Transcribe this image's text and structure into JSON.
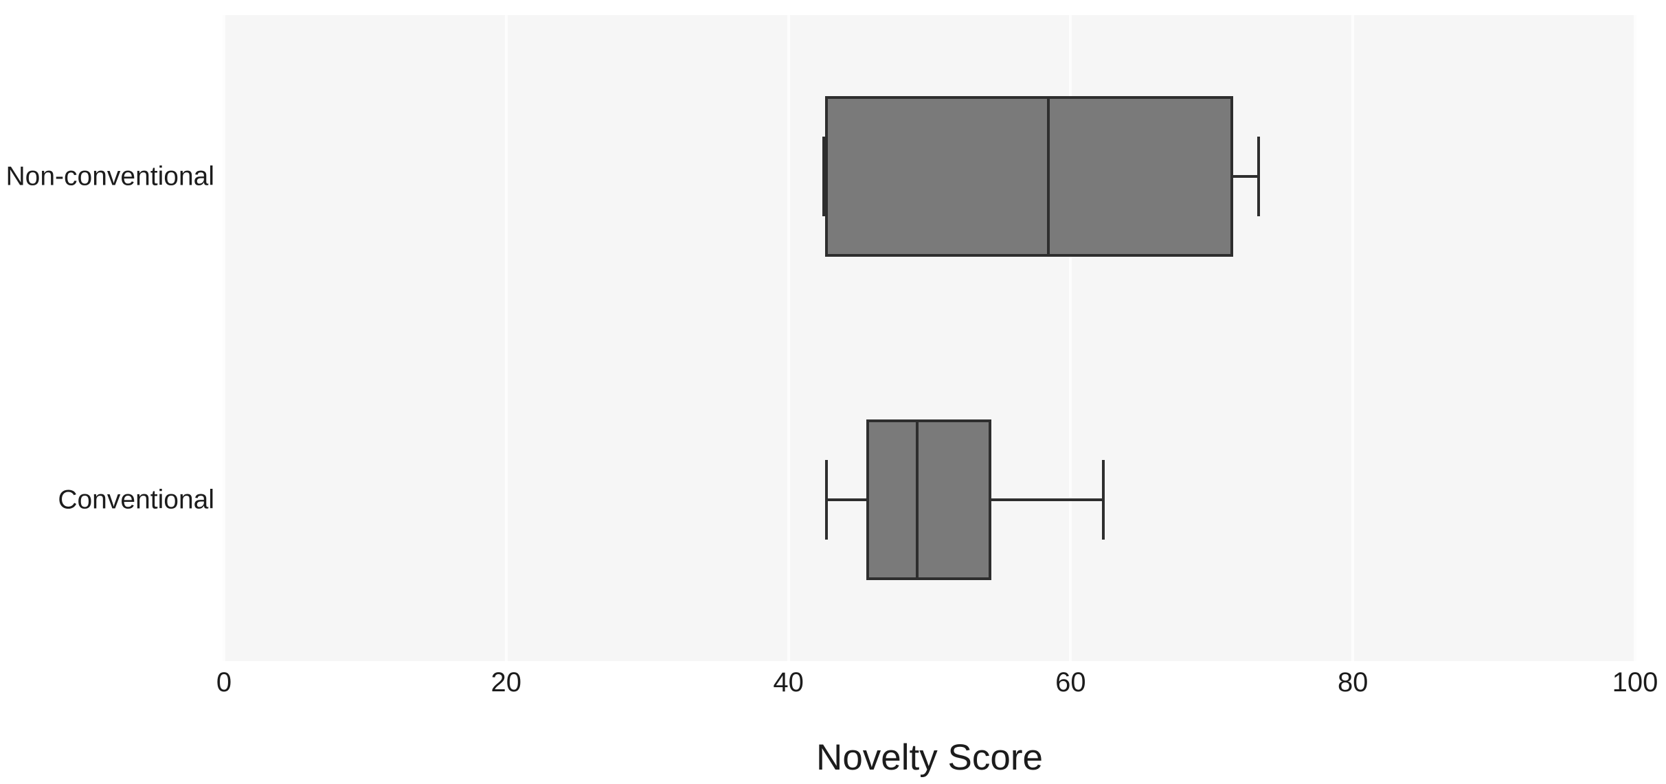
{
  "figure": {
    "background_color": "#ffffff",
    "plot_background_color": "#f6f6f6",
    "gridline_color": "#fdfdfd",
    "box_fill_color": "#7a7a7a",
    "line_color": "#2e2e2e",
    "text_color": "#1c1c1c"
  },
  "chart_data": {
    "type": "boxplot",
    "orientation": "horizontal",
    "title": "",
    "xlabel": "Novelty Score",
    "ylabel": "",
    "xlim": [
      0,
      100
    ],
    "xticks": [
      "0",
      "20",
      "40",
      "60",
      "80",
      "100"
    ],
    "xtick_values": [
      0,
      20,
      40,
      60,
      80,
      100
    ],
    "grid": "vertical-gridlines-on",
    "legend": "none",
    "categories": [
      "Non-conventional",
      "Conventional"
    ],
    "series": [
      {
        "name": "Non-conventional",
        "whisker_low": 42.5,
        "q1": 42.6,
        "median": 58.4,
        "q3": 71.5,
        "whisker_high": 73.3
      },
      {
        "name": "Conventional",
        "whisker_low": 42.7,
        "q1": 45.5,
        "median": 49.1,
        "q3": 54.4,
        "whisker_high": 62.3
      }
    ]
  }
}
